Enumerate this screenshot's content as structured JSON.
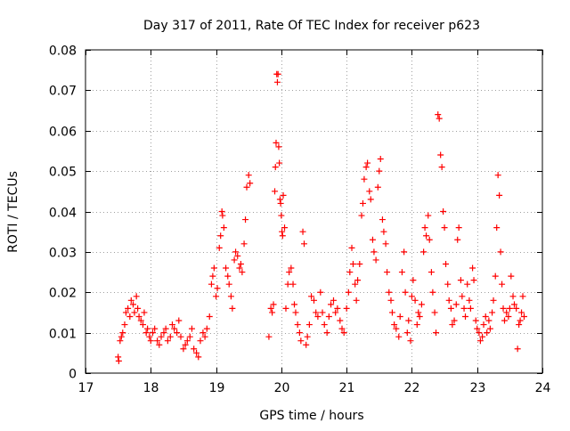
{
  "chart_data": {
    "type": "scatter",
    "title": "Day 317 of 2011, Rate Of TEC Index for receiver p623",
    "xlabel": "GPS time / hours",
    "ylabel": "ROTI / TECUs",
    "xlim": [
      17,
      24
    ],
    "ylim": [
      0,
      0.08
    ],
    "xticks": [
      17,
      18,
      19,
      20,
      21,
      22,
      23,
      24
    ],
    "yticks": [
      0,
      0.01,
      0.02,
      0.03,
      0.04,
      0.05,
      0.06,
      0.07,
      0.08
    ],
    "xtick_labels": [
      "17",
      "18",
      "19",
      "20",
      "21",
      "22",
      "23",
      "24"
    ],
    "ytick_labels": [
      "0",
      "0.01",
      "0.02",
      "0.03",
      "0.04",
      "0.05",
      "0.06",
      "0.07",
      "0.08"
    ],
    "grid": true,
    "marker": "+",
    "marker_color": "#ff0000",
    "series": [
      {
        "name": "p623",
        "points": [
          [
            17.5,
            0.004
          ],
          [
            17.51,
            0.003
          ],
          [
            17.53,
            0.008
          ],
          [
            17.55,
            0.009
          ],
          [
            17.57,
            0.01
          ],
          [
            17.6,
            0.012
          ],
          [
            17.62,
            0.015
          ],
          [
            17.65,
            0.016
          ],
          [
            17.68,
            0.014
          ],
          [
            17.7,
            0.018
          ],
          [
            17.73,
            0.017
          ],
          [
            17.75,
            0.015
          ],
          [
            17.78,
            0.019
          ],
          [
            17.8,
            0.016
          ],
          [
            17.82,
            0.014
          ],
          [
            17.85,
            0.013
          ],
          [
            17.88,
            0.012
          ],
          [
            17.9,
            0.015
          ],
          [
            17.93,
            0.01
          ],
          [
            17.95,
            0.011
          ],
          [
            17.98,
            0.009
          ],
          [
            18.0,
            0.008
          ],
          [
            18.03,
            0.01
          ],
          [
            18.06,
            0.011
          ],
          [
            18.1,
            0.008
          ],
          [
            18.13,
            0.007
          ],
          [
            18.16,
            0.009
          ],
          [
            18.2,
            0.01
          ],
          [
            18.23,
            0.011
          ],
          [
            18.26,
            0.008
          ],
          [
            18.3,
            0.009
          ],
          [
            18.33,
            0.012
          ],
          [
            18.36,
            0.011
          ],
          [
            18.4,
            0.01
          ],
          [
            18.43,
            0.013
          ],
          [
            18.46,
            0.009
          ],
          [
            18.5,
            0.006
          ],
          [
            18.53,
            0.007
          ],
          [
            18.56,
            0.008
          ],
          [
            18.6,
            0.009
          ],
          [
            18.63,
            0.011
          ],
          [
            18.66,
            0.006
          ],
          [
            18.7,
            0.005
          ],
          [
            18.73,
            0.004
          ],
          [
            18.76,
            0.008
          ],
          [
            18.8,
            0.01
          ],
          [
            18.83,
            0.009
          ],
          [
            18.86,
            0.011
          ],
          [
            18.9,
            0.014
          ],
          [
            18.93,
            0.022
          ],
          [
            18.95,
            0.024
          ],
          [
            18.97,
            0.026
          ],
          [
            19.0,
            0.019
          ],
          [
            19.02,
            0.021
          ],
          [
            19.05,
            0.031
          ],
          [
            19.07,
            0.034
          ],
          [
            19.09,
            0.04
          ],
          [
            19.1,
            0.039
          ],
          [
            19.12,
            0.036
          ],
          [
            19.15,
            0.026
          ],
          [
            19.18,
            0.024
          ],
          [
            19.2,
            0.022
          ],
          [
            19.23,
            0.019
          ],
          [
            19.25,
            0.016
          ],
          [
            19.28,
            0.028
          ],
          [
            19.3,
            0.03
          ],
          [
            19.33,
            0.029
          ],
          [
            19.36,
            0.026
          ],
          [
            19.38,
            0.027
          ],
          [
            19.4,
            0.025
          ],
          [
            19.43,
            0.032
          ],
          [
            19.45,
            0.038
          ],
          [
            19.47,
            0.046
          ],
          [
            19.5,
            0.049
          ],
          [
            19.52,
            0.047
          ],
          [
            19.81,
            0.009
          ],
          [
            19.84,
            0.016
          ],
          [
            19.86,
            0.015
          ],
          [
            19.88,
            0.017
          ],
          [
            19.9,
            0.045
          ],
          [
            19.91,
            0.051
          ],
          [
            19.92,
            0.057
          ],
          [
            19.93,
            0.074
          ],
          [
            19.94,
            0.072
          ],
          [
            19.95,
            0.074
          ],
          [
            19.96,
            0.056
          ],
          [
            19.97,
            0.052
          ],
          [
            19.98,
            0.043
          ],
          [
            19.99,
            0.042
          ],
          [
            20.0,
            0.039
          ],
          [
            20.01,
            0.035
          ],
          [
            20.02,
            0.034
          ],
          [
            20.03,
            0.044
          ],
          [
            20.05,
            0.036
          ],
          [
            20.07,
            0.016
          ],
          [
            20.1,
            0.022
          ],
          [
            20.12,
            0.025
          ],
          [
            20.15,
            0.026
          ],
          [
            20.18,
            0.022
          ],
          [
            20.2,
            0.017
          ],
          [
            20.22,
            0.015
          ],
          [
            20.25,
            0.012
          ],
          [
            20.28,
            0.01
          ],
          [
            20.3,
            0.008
          ],
          [
            20.33,
            0.035
          ],
          [
            20.35,
            0.032
          ],
          [
            20.38,
            0.007
          ],
          [
            20.4,
            0.009
          ],
          [
            20.43,
            0.012
          ],
          [
            20.46,
            0.019
          ],
          [
            20.5,
            0.018
          ],
          [
            20.53,
            0.015
          ],
          [
            20.56,
            0.014
          ],
          [
            20.6,
            0.02
          ],
          [
            20.63,
            0.015
          ],
          [
            20.66,
            0.012
          ],
          [
            20.7,
            0.01
          ],
          [
            20.73,
            0.014
          ],
          [
            20.76,
            0.017
          ],
          [
            20.8,
            0.018
          ],
          [
            20.83,
            0.015
          ],
          [
            20.86,
            0.016
          ],
          [
            20.9,
            0.013
          ],
          [
            20.93,
            0.011
          ],
          [
            20.96,
            0.01
          ],
          [
            21.0,
            0.016
          ],
          [
            21.03,
            0.02
          ],
          [
            21.05,
            0.025
          ],
          [
            21.08,
            0.031
          ],
          [
            21.1,
            0.027
          ],
          [
            21.13,
            0.022
          ],
          [
            21.15,
            0.018
          ],
          [
            21.17,
            0.023
          ],
          [
            21.2,
            0.027
          ],
          [
            21.23,
            0.039
          ],
          [
            21.25,
            0.042
          ],
          [
            21.27,
            0.048
          ],
          [
            21.3,
            0.051
          ],
          [
            21.32,
            0.052
          ],
          [
            21.35,
            0.045
          ],
          [
            21.37,
            0.043
          ],
          [
            21.4,
            0.033
          ],
          [
            21.42,
            0.03
          ],
          [
            21.45,
            0.028
          ],
          [
            21.48,
            0.046
          ],
          [
            21.5,
            0.05
          ],
          [
            21.52,
            0.053
          ],
          [
            21.55,
            0.038
          ],
          [
            21.57,
            0.035
          ],
          [
            21.6,
            0.032
          ],
          [
            21.62,
            0.025
          ],
          [
            21.65,
            0.02
          ],
          [
            21.68,
            0.018
          ],
          [
            21.7,
            0.015
          ],
          [
            21.73,
            0.012
          ],
          [
            21.76,
            0.011
          ],
          [
            21.8,
            0.009
          ],
          [
            21.82,
            0.014
          ],
          [
            21.85,
            0.025
          ],
          [
            21.88,
            0.03
          ],
          [
            21.9,
            0.02
          ],
          [
            21.93,
            0.01
          ],
          [
            21.95,
            0.013
          ],
          [
            21.98,
            0.008
          ],
          [
            22.0,
            0.019
          ],
          [
            22.02,
            0.023
          ],
          [
            22.05,
            0.018
          ],
          [
            22.08,
            0.012
          ],
          [
            22.1,
            0.015
          ],
          [
            22.12,
            0.014
          ],
          [
            22.15,
            0.017
          ],
          [
            22.18,
            0.03
          ],
          [
            22.2,
            0.036
          ],
          [
            22.22,
            0.034
          ],
          [
            22.25,
            0.039
          ],
          [
            22.27,
            0.033
          ],
          [
            22.3,
            0.025
          ],
          [
            22.32,
            0.02
          ],
          [
            22.35,
            0.015
          ],
          [
            22.37,
            0.01
          ],
          [
            22.4,
            0.064
          ],
          [
            22.42,
            0.063
          ],
          [
            22.44,
            0.054
          ],
          [
            22.46,
            0.051
          ],
          [
            22.48,
            0.04
          ],
          [
            22.5,
            0.036
          ],
          [
            22.52,
            0.027
          ],
          [
            22.55,
            0.022
          ],
          [
            22.57,
            0.018
          ],
          [
            22.6,
            0.016
          ],
          [
            22.62,
            0.012
          ],
          [
            22.65,
            0.013
          ],
          [
            22.68,
            0.017
          ],
          [
            22.7,
            0.033
          ],
          [
            22.72,
            0.036
          ],
          [
            22.75,
            0.023
          ],
          [
            22.77,
            0.019
          ],
          [
            22.8,
            0.016
          ],
          [
            22.82,
            0.014
          ],
          [
            22.85,
            0.022
          ],
          [
            22.88,
            0.018
          ],
          [
            22.9,
            0.016
          ],
          [
            22.93,
            0.026
          ],
          [
            22.95,
            0.023
          ],
          [
            22.98,
            0.013
          ],
          [
            23.0,
            0.011
          ],
          [
            23.03,
            0.01
          ],
          [
            23.05,
            0.008
          ],
          [
            23.08,
            0.009
          ],
          [
            23.1,
            0.012
          ],
          [
            23.13,
            0.014
          ],
          [
            23.15,
            0.01
          ],
          [
            23.18,
            0.013
          ],
          [
            23.2,
            0.011
          ],
          [
            23.23,
            0.015
          ],
          [
            23.25,
            0.018
          ],
          [
            23.28,
            0.024
          ],
          [
            23.3,
            0.036
          ],
          [
            23.32,
            0.049
          ],
          [
            23.34,
            0.044
          ],
          [
            23.36,
            0.03
          ],
          [
            23.38,
            0.022
          ],
          [
            23.4,
            0.016
          ],
          [
            23.42,
            0.013
          ],
          [
            23.45,
            0.015
          ],
          [
            23.48,
            0.014
          ],
          [
            23.5,
            0.016
          ],
          [
            23.52,
            0.024
          ],
          [
            23.55,
            0.019
          ],
          [
            23.57,
            0.017
          ],
          [
            23.6,
            0.016
          ],
          [
            23.62,
            0.006
          ],
          [
            23.64,
            0.012
          ],
          [
            23.66,
            0.013
          ],
          [
            23.68,
            0.015
          ],
          [
            23.7,
            0.019
          ],
          [
            23.72,
            0.014
          ]
        ]
      }
    ]
  }
}
